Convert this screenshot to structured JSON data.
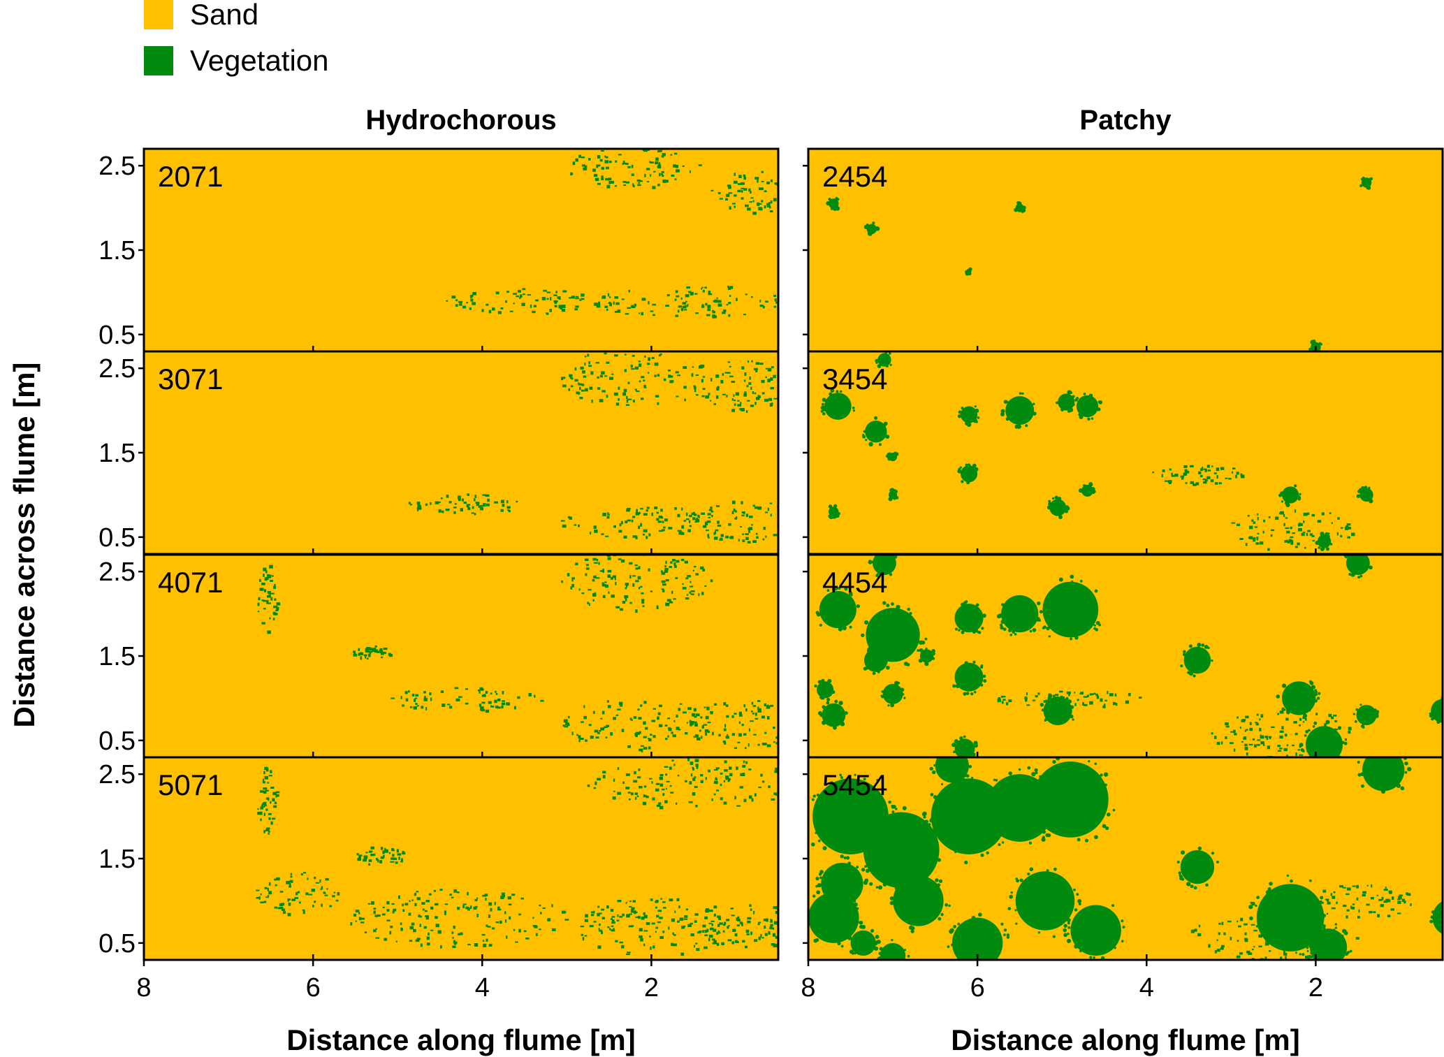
{
  "legend": {
    "items": [
      {
        "label": "Sand",
        "color": "#FFC000"
      },
      {
        "label": "Vegetation",
        "color": "#008A0E"
      }
    ]
  },
  "columns": [
    {
      "title": "Hydrochorous",
      "xlabel": "Distance along flume [m]"
    },
    {
      "title": "Patchy",
      "xlabel": "Distance along flume [m]"
    }
  ],
  "ylabel": "Distance across flume [m]",
  "chart_data": {
    "type": "heatmap",
    "description_of_values": "vegetation cover maps per run",
    "x_ticks": [
      "8",
      "6",
      "4",
      "2"
    ],
    "y_ticks": [
      "2.5",
      "1.5",
      "0.5"
    ],
    "xlim": [
      8.0,
      0.5
    ],
    "ylim": [
      0.3,
      2.7
    ],
    "categories": [
      "Sand",
      "Vegetation"
    ],
    "panels": [
      {
        "column": "Hydrochorous",
        "row": 0,
        "label": "2071",
        "patches": [
          [
            2.2,
            2.5,
            0.8,
            0.25
          ],
          [
            0.8,
            2.2,
            0.5,
            0.25
          ],
          [
            1.5,
            0.9,
            1.2,
            0.2
          ],
          [
            3.5,
            0.9,
            1.0,
            0.15
          ]
        ]
      },
      {
        "column": "Hydrochorous",
        "row": 1,
        "label": "3071",
        "patches": [
          [
            2.2,
            2.4,
            0.9,
            0.35
          ],
          [
            0.9,
            2.3,
            0.6,
            0.3
          ],
          [
            2.2,
            0.7,
            0.9,
            0.2
          ],
          [
            4.2,
            0.9,
            0.7,
            0.12
          ],
          [
            0.9,
            0.7,
            0.7,
            0.25
          ]
        ]
      },
      {
        "column": "Hydrochorous",
        "row": 2,
        "label": "4071",
        "patches": [
          [
            6.55,
            2.2,
            0.12,
            0.4
          ],
          [
            5.3,
            1.55,
            0.25,
            0.08
          ],
          [
            4.2,
            1.0,
            0.9,
            0.15
          ],
          [
            2.2,
            2.4,
            0.9,
            0.35
          ],
          [
            2.2,
            0.7,
            0.9,
            0.3
          ],
          [
            0.9,
            0.7,
            0.7,
            0.3
          ]
        ]
      },
      {
        "column": "Hydrochorous",
        "row": 3,
        "label": "5071",
        "patches": [
          [
            6.55,
            2.2,
            0.12,
            0.4
          ],
          [
            5.2,
            1.55,
            0.3,
            0.14
          ],
          [
            4.3,
            0.8,
            1.3,
            0.35
          ],
          [
            2.0,
            0.7,
            0.9,
            0.35
          ],
          [
            0.9,
            0.7,
            0.7,
            0.3
          ],
          [
            1.5,
            2.4,
            1.3,
            0.3
          ],
          [
            6.2,
            1.1,
            0.5,
            0.25
          ]
        ]
      },
      {
        "column": "Patchy",
        "row": 0,
        "label": "2454",
        "blobs": [
          [
            7.7,
            2.05,
            0.06
          ],
          [
            7.25,
            1.75,
            0.06
          ],
          [
            5.5,
            2.0,
            0.05
          ],
          [
            1.4,
            2.3,
            0.06
          ],
          [
            2.0,
            0.35,
            0.06
          ],
          [
            6.1,
            1.25,
            0.03
          ]
        ]
      },
      {
        "column": "Patchy",
        "row": 1,
        "label": "3454",
        "blobs": [
          [
            7.65,
            2.05,
            0.16
          ],
          [
            7.2,
            1.75,
            0.13
          ],
          [
            6.1,
            1.95,
            0.1
          ],
          [
            5.5,
            2.0,
            0.17
          ],
          [
            4.95,
            2.1,
            0.1
          ],
          [
            4.7,
            2.05,
            0.13
          ],
          [
            6.1,
            1.25,
            0.1
          ],
          [
            5.05,
            0.85,
            0.1
          ],
          [
            2.3,
            1.0,
            0.1
          ],
          [
            7.0,
            1.45,
            0.05
          ],
          [
            7.7,
            0.8,
            0.06
          ],
          [
            1.4,
            1.0,
            0.08
          ],
          [
            1.9,
            0.45,
            0.08
          ],
          [
            7.1,
            2.6,
            0.08
          ],
          [
            7.0,
            1.0,
            0.05
          ],
          [
            4.7,
            1.05,
            0.07
          ]
        ],
        "patches": [
          [
            3.4,
            1.25,
            0.55,
            0.12
          ],
          [
            2.3,
            0.6,
            0.75,
            0.25
          ]
        ]
      },
      {
        "column": "Patchy",
        "row": 2,
        "label": "4454",
        "blobs": [
          [
            7.65,
            2.05,
            0.22
          ],
          [
            7.0,
            1.75,
            0.32
          ],
          [
            6.1,
            1.95,
            0.17
          ],
          [
            5.5,
            2.0,
            0.22
          ],
          [
            4.9,
            2.05,
            0.33
          ],
          [
            6.1,
            1.25,
            0.17
          ],
          [
            5.05,
            0.85,
            0.17
          ],
          [
            7.7,
            0.8,
            0.14
          ],
          [
            7.2,
            1.45,
            0.14
          ],
          [
            7.0,
            1.05,
            0.12
          ],
          [
            7.8,
            1.1,
            0.1
          ],
          [
            3.4,
            1.45,
            0.16
          ],
          [
            2.2,
            1.0,
            0.2
          ],
          [
            1.4,
            0.8,
            0.12
          ],
          [
            1.9,
            0.45,
            0.22
          ],
          [
            0.5,
            0.85,
            0.14
          ],
          [
            7.1,
            2.6,
            0.14
          ],
          [
            1.5,
            2.6,
            0.14
          ],
          [
            6.6,
            1.5,
            0.08
          ],
          [
            6.15,
            0.4,
            0.12
          ]
        ],
        "patches": [
          [
            2.4,
            0.6,
            0.85,
            0.3
          ],
          [
            4.9,
            1.0,
            0.9,
            0.1
          ]
        ]
      },
      {
        "column": "Patchy",
        "row": 3,
        "label": "5454",
        "blobs": [
          [
            7.5,
            2.0,
            0.45
          ],
          [
            6.9,
            1.6,
            0.45
          ],
          [
            6.1,
            2.0,
            0.45
          ],
          [
            5.5,
            2.1,
            0.4
          ],
          [
            4.9,
            2.2,
            0.45
          ],
          [
            7.7,
            0.8,
            0.3
          ],
          [
            7.6,
            1.2,
            0.25
          ],
          [
            6.0,
            0.5,
            0.3
          ],
          [
            4.6,
            0.65,
            0.3
          ],
          [
            5.2,
            1.0,
            0.35
          ],
          [
            6.7,
            1.0,
            0.3
          ],
          [
            3.4,
            1.4,
            0.2
          ],
          [
            2.3,
            0.8,
            0.4
          ],
          [
            1.85,
            0.45,
            0.22
          ],
          [
            0.4,
            0.8,
            0.22
          ],
          [
            7.0,
            0.35,
            0.15
          ],
          [
            7.35,
            0.5,
            0.15
          ],
          [
            6.3,
            2.6,
            0.2
          ],
          [
            1.2,
            2.55,
            0.25
          ]
        ],
        "patches": [
          [
            2.5,
            0.6,
            1.0,
            0.3
          ],
          [
            1.5,
            1.0,
            0.7,
            0.2
          ]
        ]
      }
    ]
  }
}
